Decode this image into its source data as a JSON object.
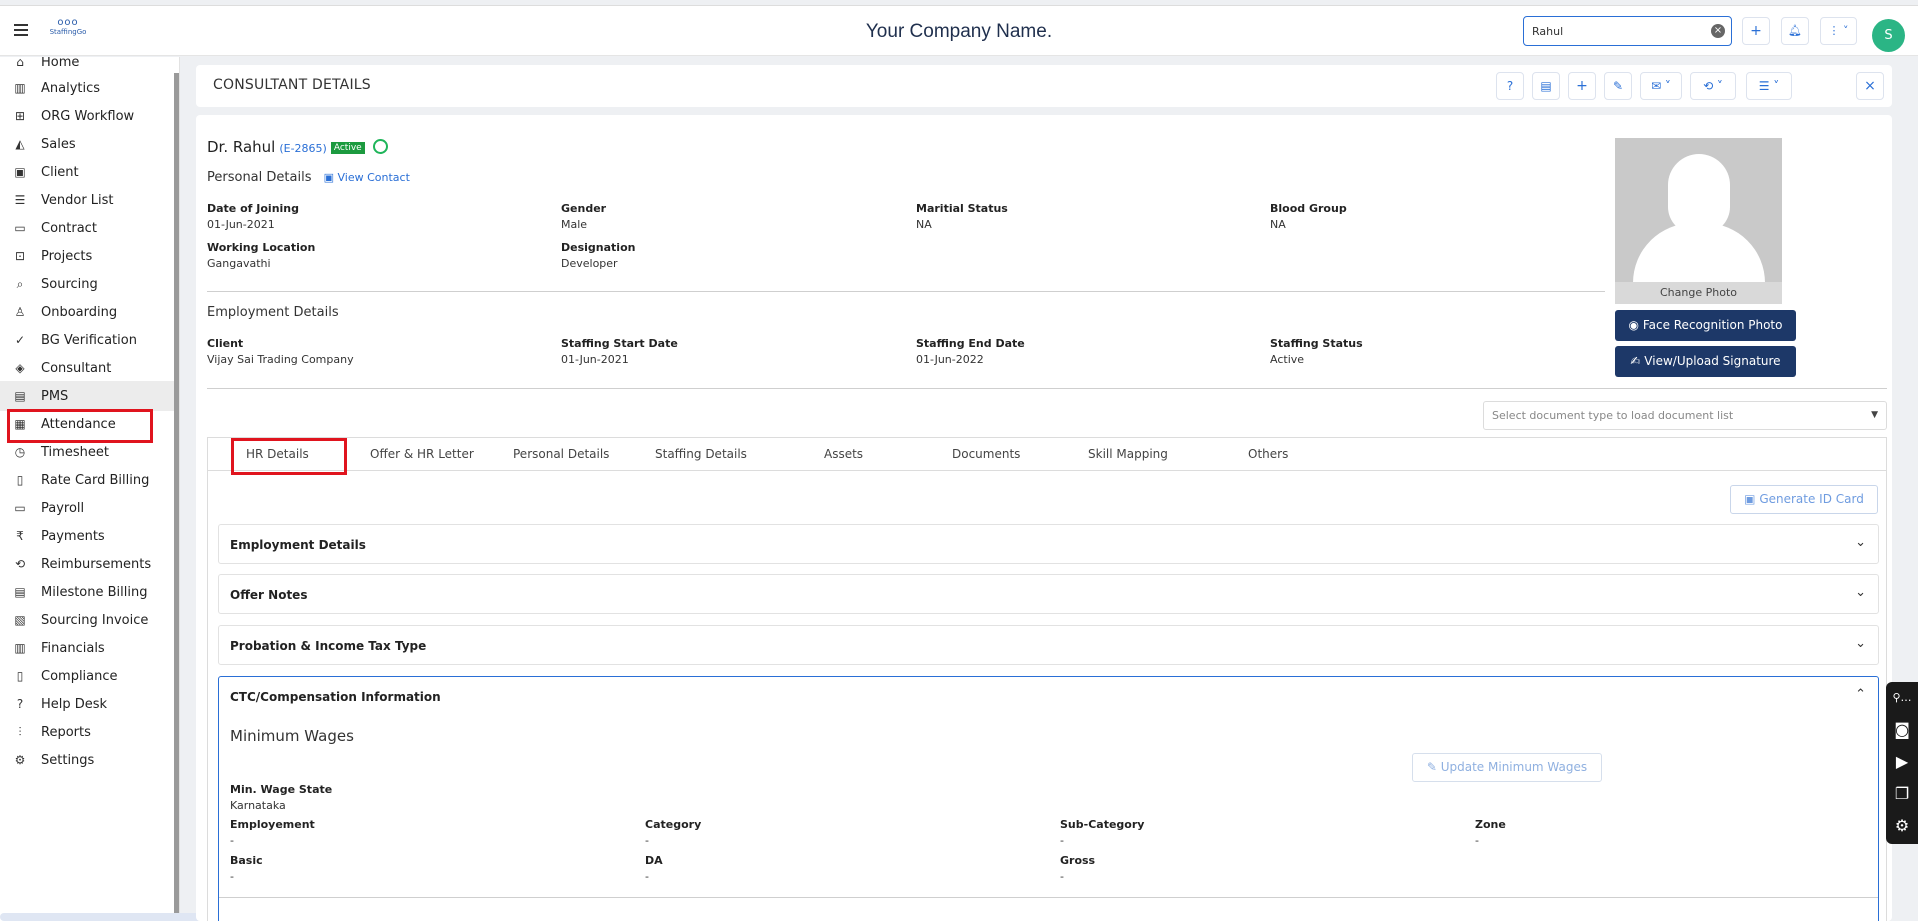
{
  "header": {
    "logo_dots": "ooo",
    "logo_text": "StaffingGo",
    "company_name": "Your Company Name.",
    "search_value": "Rahul",
    "avatar_initial": "S"
  },
  "sidebar": {
    "items": [
      {
        "label": "Home",
        "icon": "home-icon"
      },
      {
        "label": "Analytics",
        "icon": "analytics-icon"
      },
      {
        "label": "ORG Workflow",
        "icon": "workflow-icon"
      },
      {
        "label": "Sales",
        "icon": "sales-icon"
      },
      {
        "label": "Client",
        "icon": "client-icon"
      },
      {
        "label": "Vendor List",
        "icon": "vendor-icon"
      },
      {
        "label": "Contract",
        "icon": "contract-icon"
      },
      {
        "label": "Projects",
        "icon": "projects-icon"
      },
      {
        "label": "Sourcing",
        "icon": "sourcing-icon"
      },
      {
        "label": "Onboarding",
        "icon": "onboarding-icon"
      },
      {
        "label": "BG Verification",
        "icon": "verification-icon"
      },
      {
        "label": "Consultant",
        "icon": "consultant-icon"
      },
      {
        "label": "PMS",
        "icon": "pms-icon"
      },
      {
        "label": "Attendance",
        "icon": "calendar-icon"
      },
      {
        "label": "Timesheet",
        "icon": "timesheet-icon"
      },
      {
        "label": "Rate Card Billing",
        "icon": "billing-icon"
      },
      {
        "label": "Payroll",
        "icon": "payroll-icon"
      },
      {
        "label": "Payments",
        "icon": "rupee-icon"
      },
      {
        "label": "Reimbursements",
        "icon": "reimburse-icon"
      },
      {
        "label": "Milestone Billing",
        "icon": "milestone-icon"
      },
      {
        "label": "Sourcing Invoice",
        "icon": "invoice-icon"
      },
      {
        "label": "Financials",
        "icon": "financials-icon"
      },
      {
        "label": "Compliance",
        "icon": "compliance-icon"
      },
      {
        "label": "Help Desk",
        "icon": "help-icon"
      },
      {
        "label": "Reports",
        "icon": "reports-icon"
      },
      {
        "label": "Settings",
        "icon": "settings-icon"
      }
    ]
  },
  "page": {
    "title": "CONSULTANT DETAILS"
  },
  "consultant": {
    "name": "Dr. Rahul",
    "code": "(E-2865)",
    "status_badge": "Active",
    "personal_details_label": "Personal Details",
    "view_contact": "View Contact",
    "fields": {
      "doj_label": "Date of Joining",
      "doj": "01-Jun-2021",
      "gender_label": "Gender",
      "gender": "Male",
      "marital_label": "Maritial Status",
      "marital": "NA",
      "blood_label": "Blood Group",
      "blood": "NA",
      "location_label": "Working Location",
      "location": "Gangavathi",
      "designation_label": "Designation",
      "designation": "Developer"
    },
    "employment_label": "Employment Details",
    "employment": {
      "client_label": "Client",
      "client": "Vijay Sai Trading Company",
      "start_label": "Staffing Start Date",
      "start": "01-Jun-2021",
      "end_label": "Staffing End Date",
      "end": "01-Jun-2022",
      "status_label": "Staffing Status",
      "status": "Active"
    },
    "change_photo": "Change Photo",
    "face_btn": "Face Recognition Photo",
    "signature_btn": "View/Upload Signature"
  },
  "documents": {
    "select_placeholder": "Select document type to load document list"
  },
  "tabs": [
    "HR Details",
    "Offer & HR Letter",
    "Personal Details",
    "Staffing Details",
    "Assets",
    "Documents",
    "Skill Mapping",
    "Others"
  ],
  "hr": {
    "generate_id": "Generate ID Card",
    "accordions": [
      "Employment Details",
      "Offer Notes",
      "Probation & Income Tax Type",
      "CTC/Compensation Information"
    ],
    "minimum_wages": "Minimum Wages",
    "update_btn": "Update Minimum Wages",
    "wage_state_label": "Min. Wage State",
    "wage_state": "Karnataka",
    "employment_label": "Employement",
    "employment": "-",
    "category_label": "Category",
    "category": "-",
    "subcategory_label": "Sub-Category",
    "subcategory": "-",
    "zone_label": "Zone",
    "zone": "-",
    "basic_label": "Basic",
    "basic": "-",
    "da_label": "DA",
    "da": "-",
    "gross_label": "Gross",
    "gross": "-"
  },
  "colors": {
    "brand_navy": "#1d3868",
    "accent_blue": "#2a6fd6",
    "highlight_red": "#e0141e",
    "active_green": "#1c9a3f"
  }
}
